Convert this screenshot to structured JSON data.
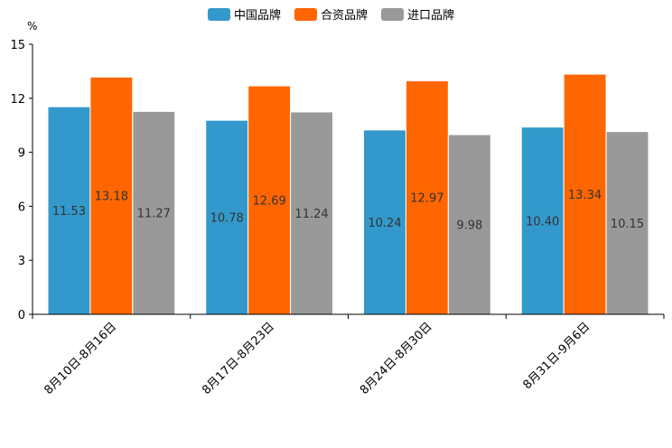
{
  "chart_data": {
    "type": "bar",
    "ylabel": "%",
    "ylim": [
      0,
      15
    ],
    "yticks": [
      0,
      3,
      6,
      9,
      12,
      15
    ],
    "legend_position": "top-center",
    "grid": false,
    "categories": [
      "8月10日-8月16日",
      "8月17日-8月23日",
      "8月24日-8月30日",
      "8月31日-9月6日"
    ],
    "series": [
      {
        "name": "中国品牌",
        "color": "#3399cc",
        "values": [
          11.53,
          10.78,
          10.24,
          10.4
        ],
        "labels": [
          "11.53",
          "10.78",
          "10.24",
          "10.40"
        ]
      },
      {
        "name": "合资品牌",
        "color": "#ff6600",
        "values": [
          13.18,
          12.69,
          12.97,
          13.34
        ],
        "labels": [
          "13.18",
          "12.69",
          "12.97",
          "13.34"
        ]
      },
      {
        "name": "进口品牌",
        "color": "#999999",
        "values": [
          11.27,
          11.24,
          9.98,
          10.15
        ],
        "labels": [
          "11.27",
          "11.24",
          "9.98",
          "10.15"
        ]
      }
    ]
  }
}
